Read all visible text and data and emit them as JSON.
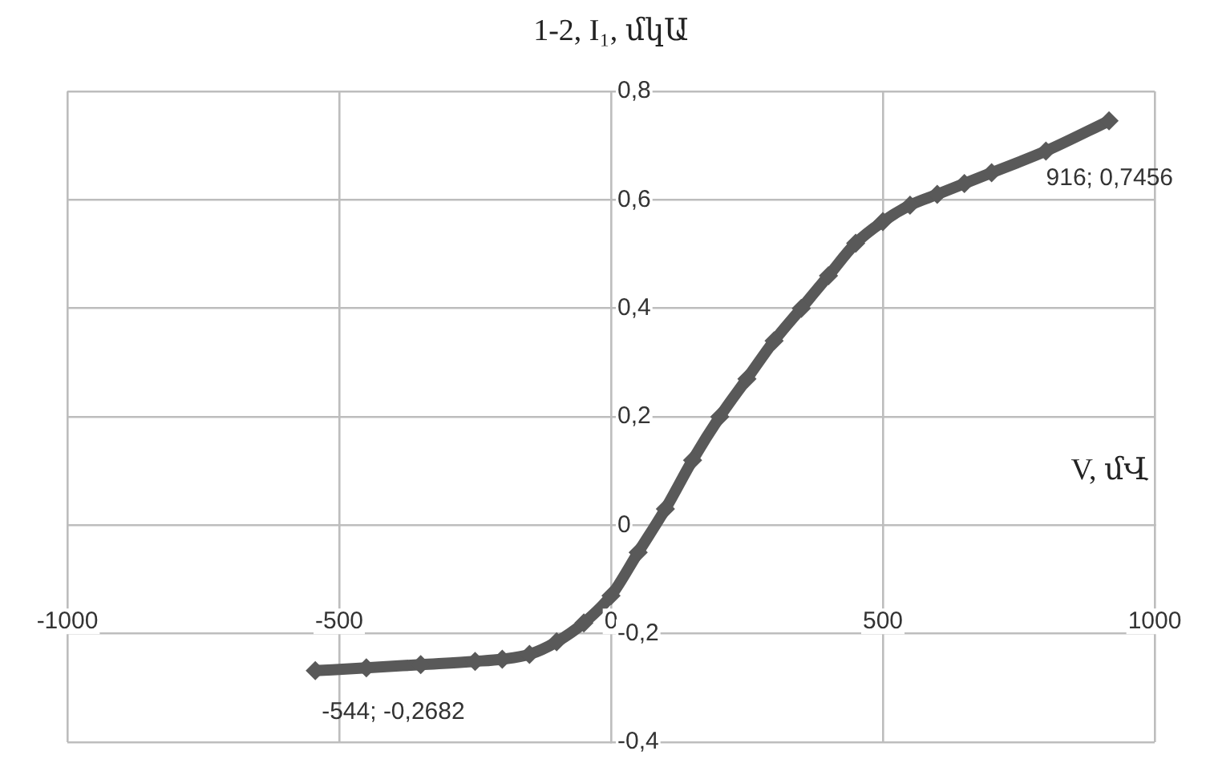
{
  "chart_data": {
    "type": "line",
    "ylabel": "1-2, I₁, մկԱ",
    "xlabel": "V, մՎ",
    "x": [
      -544,
      -450,
      -350,
      -250,
      -200,
      -150,
      -100,
      -50,
      0,
      50,
      100,
      150,
      200,
      250,
      300,
      350,
      400,
      450,
      500,
      550,
      600,
      650,
      700,
      800,
      916
    ],
    "series": [
      {
        "color": "#595959",
        "values": [
          -0.2682,
          -0.263,
          -0.257,
          -0.251,
          -0.247,
          -0.238,
          -0.215,
          -0.18,
          -0.13,
          -0.05,
          0.03,
          0.12,
          0.2,
          0.27,
          0.34,
          0.4,
          0.46,
          0.52,
          0.56,
          0.59,
          0.61,
          0.63,
          0.65,
          0.69,
          0.7456
        ]
      }
    ],
    "marker": "diamond",
    "line_style": "solid",
    "grid": true,
    "legend": false,
    "xlim": [
      -1000,
      1000
    ],
    "xticks": [
      -1000,
      -500,
      0,
      500,
      1000
    ],
    "ylim": [
      -0.4,
      0.8
    ],
    "yticks": [
      {
        "value": -0.4,
        "label": "-0,4"
      },
      {
        "value": -0.2,
        "label": "-0,2"
      },
      {
        "value": 0,
        "label": "0"
      },
      {
        "value": 0.2,
        "label": "0,2"
      },
      {
        "value": 0.4,
        "label": "0,4"
      },
      {
        "value": 0.6,
        "label": "0,6"
      },
      {
        "value": 0.8,
        "label": "0,8"
      }
    ],
    "annotations": [
      {
        "text": "-544; -0,2682",
        "x": -544,
        "y": -0.2682
      },
      {
        "text": "916; 0,7456",
        "x": 916,
        "y": 0.7456
      }
    ]
  }
}
